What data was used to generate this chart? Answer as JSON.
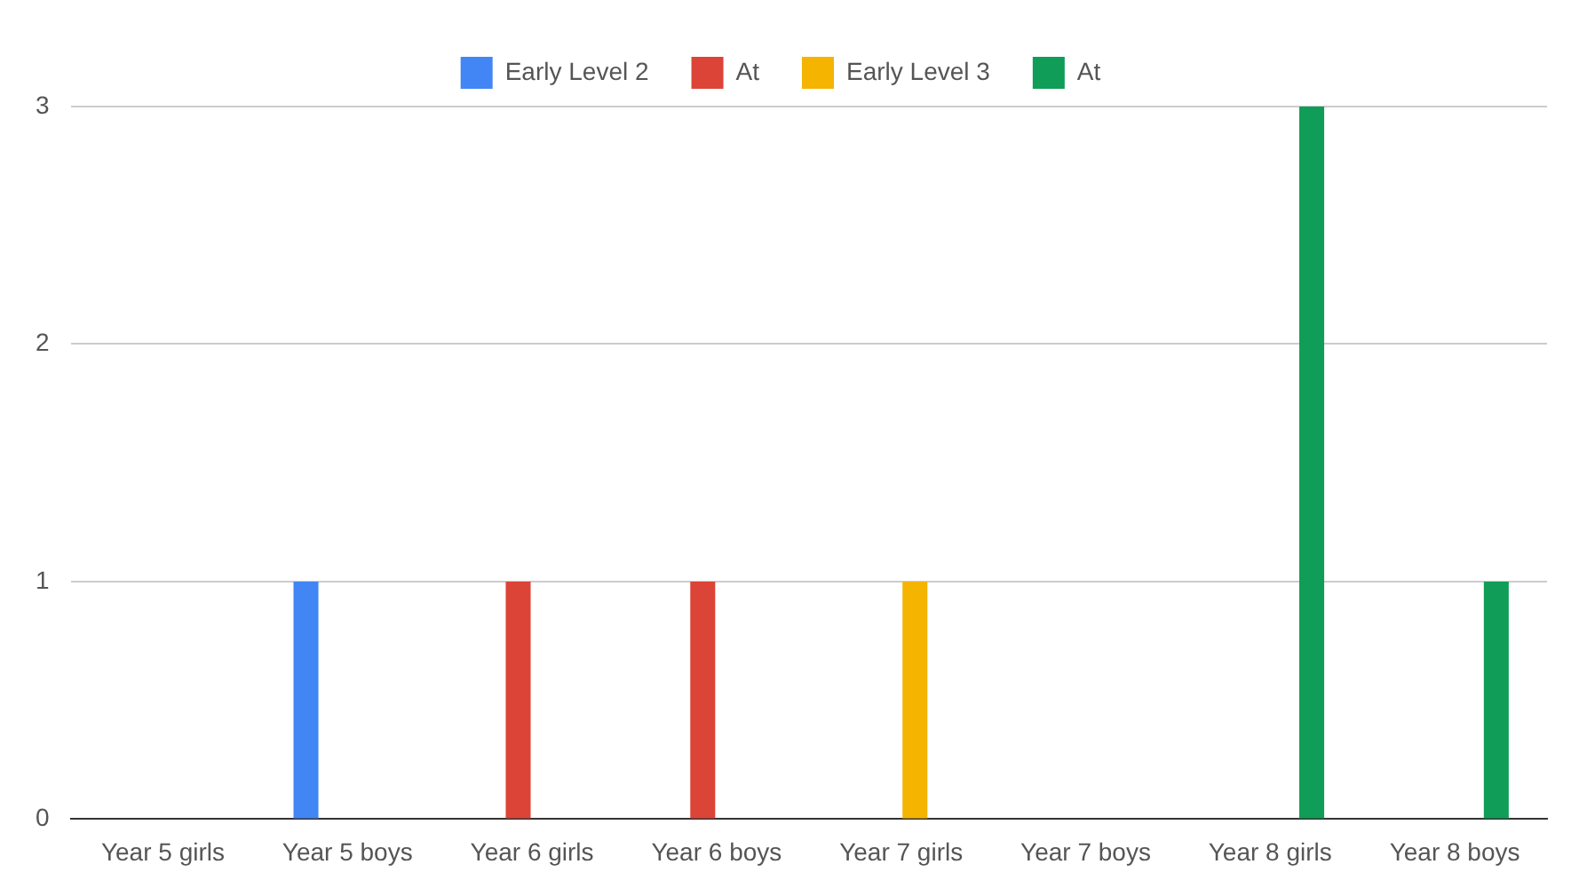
{
  "chart_data": {
    "type": "bar",
    "categories": [
      "Year 5 girls",
      "Year 5 boys",
      "Year 6 girls",
      "Year 6 boys",
      "Year 7 girls",
      "Year 7 boys",
      "Year 8 girls",
      "Year 8 boys"
    ],
    "series": [
      {
        "name": "Early Level 2",
        "color": "#4285f4",
        "values": [
          0,
          1,
          0,
          0,
          0,
          0,
          0,
          0
        ]
      },
      {
        "name": "At",
        "color": "#db4437",
        "values": [
          0,
          0,
          1,
          1,
          0,
          0,
          0,
          0
        ]
      },
      {
        "name": "Early Level 3",
        "color": "#f4b400",
        "values": [
          0,
          0,
          0,
          0,
          1,
          0,
          0,
          0
        ]
      },
      {
        "name": "At",
        "color": "#0f9d58",
        "values": [
          0,
          0,
          0,
          0,
          0,
          0,
          3,
          1
        ]
      }
    ],
    "ylim": [
      0,
      3
    ],
    "yticks": [
      0,
      1,
      2,
      3
    ],
    "grid": "y",
    "legend": "top"
  }
}
